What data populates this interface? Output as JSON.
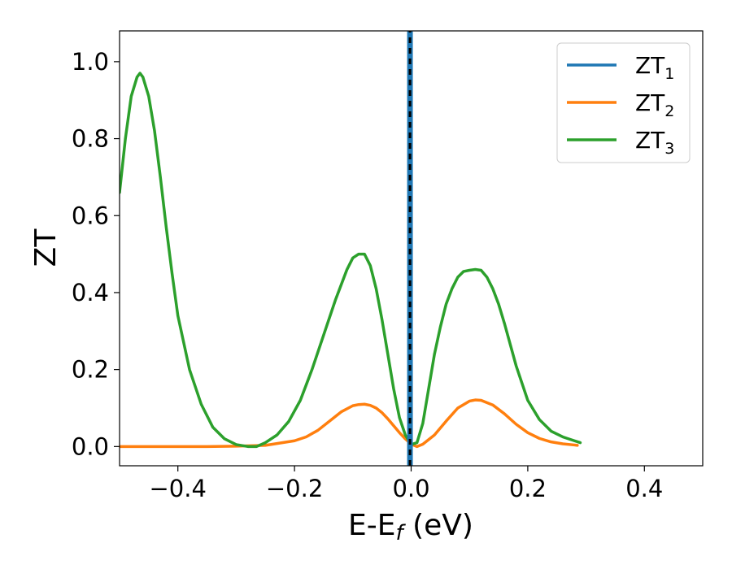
{
  "chart_data": {
    "type": "line",
    "title": "",
    "xlabel": "E-E",
    "xlabel_subscript": "f",
    "xlabel_unit": " (eV)",
    "ylabel": "ZT",
    "xlim": [
      -0.5,
      0.5
    ],
    "ylim": [
      -0.05,
      1.08
    ],
    "xticks": [
      -0.4,
      -0.2,
      0.0,
      0.2,
      0.4
    ],
    "xtick_labels": [
      "−0.4",
      "−0.2",
      "0.0",
      "0.2",
      "0.4"
    ],
    "yticks": [
      0.0,
      0.2,
      0.4,
      0.6,
      0.8,
      1.0
    ],
    "ytick_labels": [
      "0.0",
      "0.2",
      "0.4",
      "0.6",
      "0.8",
      "1.0"
    ],
    "grid": false,
    "legend_position": "top-right",
    "fermi_level": {
      "x": -0.002,
      "ymin": -0.05,
      "ymax": 1.08,
      "colors": [
        "#1f77b4",
        "#000000"
      ]
    },
    "series": [
      {
        "name": "ZT",
        "name_subscript": "1",
        "color": "#1f77b4",
        "x": [
          -0.002,
          -0.002
        ],
        "y": [
          -0.05,
          1.08
        ]
      },
      {
        "name": "ZT",
        "name_subscript": "2",
        "color": "#ff7f0e",
        "x": [
          -0.5,
          -0.45,
          -0.4,
          -0.35,
          -0.3,
          -0.25,
          -0.2,
          -0.18,
          -0.16,
          -0.14,
          -0.12,
          -0.1,
          -0.09,
          -0.08,
          -0.07,
          -0.06,
          -0.05,
          -0.04,
          -0.03,
          -0.02,
          -0.01,
          0.0,
          0.01,
          0.02,
          0.04,
          0.06,
          0.08,
          0.1,
          0.11,
          0.12,
          0.14,
          0.16,
          0.18,
          0.2,
          0.22,
          0.24,
          0.26,
          0.28,
          0.285
        ],
        "y": [
          0.0,
          0.0,
          0.0,
          0.0,
          0.001,
          0.003,
          0.015,
          0.025,
          0.042,
          0.066,
          0.09,
          0.106,
          0.109,
          0.11,
          0.107,
          0.1,
          0.088,
          0.072,
          0.054,
          0.036,
          0.02,
          0.006,
          0.0,
          0.006,
          0.03,
          0.066,
          0.1,
          0.118,
          0.121,
          0.12,
          0.108,
          0.085,
          0.058,
          0.036,
          0.021,
          0.012,
          0.007,
          0.004,
          0.003
        ]
      },
      {
        "name": "ZT",
        "name_subscript": "3",
        "color": "#2ca02c",
        "x": [
          -0.5,
          -0.49,
          -0.48,
          -0.47,
          -0.465,
          -0.46,
          -0.45,
          -0.44,
          -0.43,
          -0.42,
          -0.41,
          -0.4,
          -0.38,
          -0.36,
          -0.34,
          -0.32,
          -0.3,
          -0.28,
          -0.265,
          -0.25,
          -0.23,
          -0.21,
          -0.19,
          -0.17,
          -0.15,
          -0.13,
          -0.11,
          -0.1,
          -0.09,
          -0.08,
          -0.07,
          -0.06,
          -0.05,
          -0.04,
          -0.03,
          -0.02,
          -0.01,
          0.0,
          0.01,
          0.02,
          0.03,
          0.04,
          0.05,
          0.06,
          0.07,
          0.08,
          0.09,
          0.1,
          0.11,
          0.12,
          0.13,
          0.14,
          0.15,
          0.16,
          0.18,
          0.2,
          0.22,
          0.24,
          0.26,
          0.28,
          0.29
        ],
        "y": [
          0.66,
          0.8,
          0.91,
          0.96,
          0.97,
          0.96,
          0.91,
          0.82,
          0.7,
          0.57,
          0.45,
          0.34,
          0.2,
          0.11,
          0.05,
          0.02,
          0.005,
          0.0,
          0.0,
          0.01,
          0.03,
          0.065,
          0.12,
          0.2,
          0.29,
          0.38,
          0.46,
          0.49,
          0.5,
          0.5,
          0.47,
          0.41,
          0.33,
          0.24,
          0.15,
          0.075,
          0.03,
          0.005,
          0.01,
          0.06,
          0.15,
          0.24,
          0.31,
          0.37,
          0.41,
          0.44,
          0.455,
          0.458,
          0.46,
          0.458,
          0.44,
          0.41,
          0.37,
          0.32,
          0.21,
          0.12,
          0.07,
          0.04,
          0.025,
          0.015,
          0.01
        ]
      }
    ]
  }
}
